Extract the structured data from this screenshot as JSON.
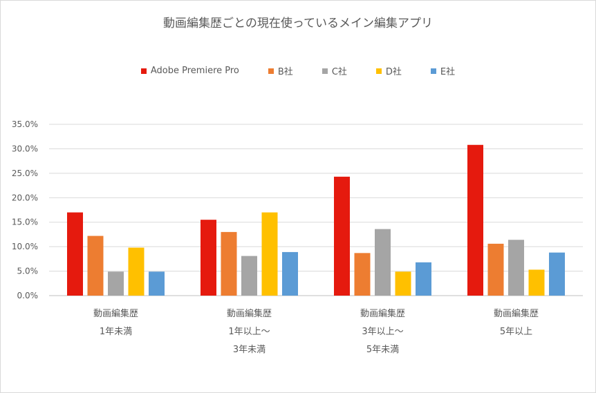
{
  "chart_data": {
    "type": "bar",
    "title": "動画編集歴ごとの現在使っているメイン編集アプリ",
    "categories": [
      [
        "動画編集歴",
        "1年未満"
      ],
      [
        "動画編集歴",
        "1年以上～",
        "3年未満"
      ],
      [
        "動画編集歴",
        "3年以上～",
        "5年未満"
      ],
      [
        "動画編集歴",
        "5年以上"
      ]
    ],
    "series": [
      {
        "name": "Adobe Premiere Pro",
        "color": "#e51a0e",
        "values": [
          17.0,
          15.5,
          24.3,
          30.8
        ]
      },
      {
        "name": "B社",
        "color": "#ed7d31",
        "values": [
          12.2,
          13.0,
          8.7,
          10.6
        ]
      },
      {
        "name": "C社",
        "color": "#a5a5a5",
        "values": [
          4.9,
          8.1,
          13.6,
          11.4
        ]
      },
      {
        "name": "D社",
        "color": "#ffc000",
        "values": [
          9.8,
          17.0,
          4.9,
          5.3
        ]
      },
      {
        "name": "E社",
        "color": "#5b9bd5",
        "values": [
          4.9,
          8.9,
          6.8,
          8.8
        ]
      }
    ],
    "ylim": [
      0,
      35
    ],
    "yticks": [
      "0.0%",
      "5.0%",
      "10.0%",
      "15.0%",
      "20.0%",
      "25.0%",
      "30.0%",
      "35.0%"
    ],
    "grid": true,
    "legend": "top"
  }
}
